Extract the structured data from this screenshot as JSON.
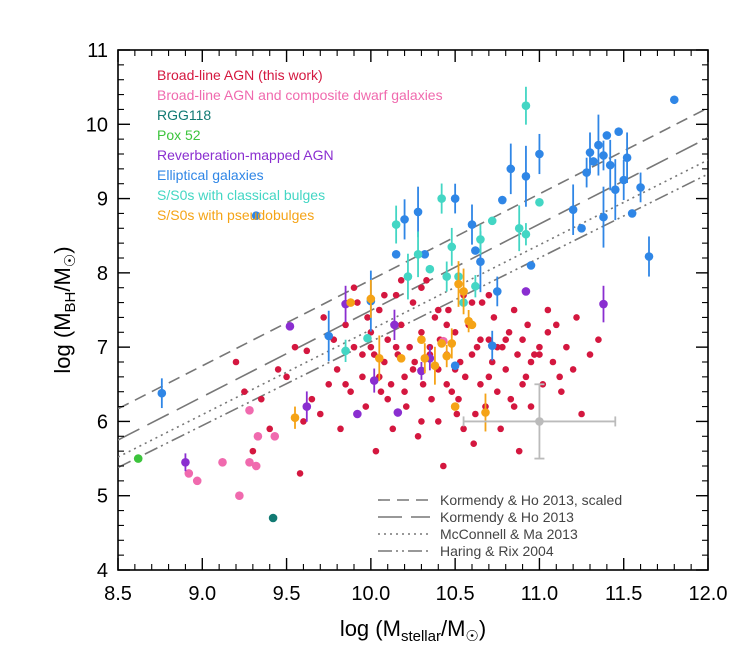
{
  "chart_data": {
    "type": "scatter",
    "xlabel": "log (M_stellar/M_sun)",
    "ylabel": "log (M_BH/M_sun)",
    "xlim": [
      8.5,
      12.0
    ],
    "ylim": [
      4.0,
      11.0
    ],
    "xticks": [
      "8.5",
      "9.0",
      "9.5",
      "10.0",
      "10.5",
      "11.0",
      "11.5",
      "12.0"
    ],
    "yticks": [
      "4",
      "5",
      "6",
      "7",
      "8",
      "9",
      "10",
      "11"
    ],
    "colors": {
      "broad_line": "#d4173f",
      "dwarf": "#f06aae",
      "rgg118": "#117a73",
      "pox52": "#3cc43c",
      "reverberation": "#8a2ed0",
      "elliptical": "#2f86e6",
      "classical": "#43d6c4",
      "pseudo": "#f5a316",
      "relation": "#777777",
      "error": "#bbbbbb"
    },
    "legend": [
      {
        "label": "Broad-line AGN (this work)",
        "series": "broad_line"
      },
      {
        "label": "Broad-line AGN and composite dwarf galaxies",
        "series": "dwarf"
      },
      {
        "label": "RGG118",
        "series": "rgg118"
      },
      {
        "label": "Pox 52",
        "series": "pox52"
      },
      {
        "label": "Reverberation-mapped AGN",
        "series": "reverberation"
      },
      {
        "label": "Elliptical galaxies",
        "series": "elliptical"
      },
      {
        "label": "S/S0s with classical bulges",
        "series": "classical"
      },
      {
        "label": "S/S0s with pseudobulges",
        "series": "pseudo"
      }
    ],
    "relations": [
      {
        "label": "Kormendy & Ho 2013, scaled",
        "dash": "12,7",
        "points": [
          [
            8.5,
            6.17
          ],
          [
            12.0,
            10.22
          ]
        ]
      },
      {
        "label": "Kormendy & Ho 2013",
        "dash": "24,9",
        "points": [
          [
            8.5,
            5.75
          ],
          [
            12.0,
            9.82
          ]
        ]
      },
      {
        "label": "McConnell & Ma 2013",
        "dash": "2,4",
        "points": [
          [
            8.5,
            5.52
          ],
          [
            12.0,
            9.52
          ]
        ]
      },
      {
        "label": "Haring & Rix 2004",
        "dash": "14,4,2,4,2,4",
        "points": [
          [
            8.5,
            5.38
          ],
          [
            12.0,
            9.33
          ]
        ]
      }
    ],
    "typical_error": {
      "x": 11.0,
      "y": 6.0,
      "xerr": 0.45,
      "yerr": 0.5
    },
    "series": [
      {
        "name": "broad_line",
        "values": [
          [
            9.62,
            6.95
          ],
          [
            9.65,
            6.3
          ],
          [
            9.7,
            6.1
          ],
          [
            9.72,
            7.4
          ],
          [
            9.75,
            6.5
          ],
          [
            9.78,
            7.1
          ],
          [
            9.8,
            6.7
          ],
          [
            9.82,
            5.9
          ],
          [
            9.85,
            7.3
          ],
          [
            9.88,
            6.4
          ],
          [
            9.9,
            7.0
          ],
          [
            9.92,
            7.6
          ],
          [
            9.95,
            6.6
          ],
          [
            9.97,
            6.2
          ],
          [
            10.0,
            7.2
          ],
          [
            10.02,
            6.9
          ],
          [
            10.03,
            5.6
          ],
          [
            10.05,
            7.5
          ],
          [
            10.06,
            6.4
          ],
          [
            10.08,
            6.8
          ],
          [
            10.1,
            7.1
          ],
          [
            10.12,
            6.5
          ],
          [
            10.13,
            5.9
          ],
          [
            10.15,
            7.7
          ],
          [
            10.16,
            6.9
          ],
          [
            10.18,
            7.3
          ],
          [
            10.2,
            6.6
          ],
          [
            10.21,
            6.2
          ],
          [
            10.23,
            7.0
          ],
          [
            10.25,
            7.6
          ],
          [
            10.26,
            6.8
          ],
          [
            10.28,
            5.8
          ],
          [
            10.3,
            7.2
          ],
          [
            10.31,
            6.5
          ],
          [
            10.33,
            7.9
          ],
          [
            10.35,
            6.9
          ],
          [
            10.36,
            6.3
          ],
          [
            10.38,
            7.4
          ],
          [
            10.4,
            6.7
          ],
          [
            10.41,
            7.1
          ],
          [
            10.43,
            5.4
          ],
          [
            10.45,
            6.9
          ],
          [
            10.46,
            7.5
          ],
          [
            10.48,
            6.4
          ],
          [
            10.5,
            7.2
          ],
          [
            10.51,
            6.1
          ],
          [
            10.53,
            6.8
          ],
          [
            10.55,
            7.7
          ],
          [
            10.56,
            6.6
          ],
          [
            10.58,
            7.3
          ],
          [
            10.6,
            6.9
          ],
          [
            10.61,
            5.7
          ],
          [
            10.63,
            7.0
          ],
          [
            10.65,
            6.5
          ],
          [
            10.66,
            7.6
          ],
          [
            10.68,
            6.2
          ],
          [
            10.7,
            7.1
          ],
          [
            10.72,
            6.8
          ],
          [
            10.73,
            7.4
          ],
          [
            10.75,
            6.4
          ],
          [
            10.77,
            5.9
          ],
          [
            10.78,
            7.0
          ],
          [
            10.8,
            6.7
          ],
          [
            10.82,
            7.2
          ],
          [
            10.83,
            6.3
          ],
          [
            10.85,
            7.5
          ],
          [
            10.87,
            6.9
          ],
          [
            10.88,
            5.6
          ],
          [
            10.9,
            7.1
          ],
          [
            10.92,
            6.6
          ],
          [
            10.93,
            7.3
          ],
          [
            10.95,
            6.2
          ],
          [
            10.97,
            6.9
          ],
          [
            11.0,
            7.0
          ],
          [
            11.02,
            6.5
          ],
          [
            11.05,
            7.2
          ],
          [
            11.08,
            6.8
          ],
          [
            11.1,
            7.3
          ],
          [
            11.13,
            6.4
          ],
          [
            11.16,
            7.0
          ],
          [
            11.2,
            6.7
          ],
          [
            11.25,
            6.1
          ],
          [
            11.3,
            6.9
          ],
          [
            11.35,
            7.1
          ],
          [
            9.5,
            6.6
          ],
          [
            9.55,
            7.0
          ],
          [
            9.58,
            5.3
          ],
          [
            9.6,
            6.0
          ],
          [
            9.45,
            6.7
          ],
          [
            9.4,
            5.9
          ],
          [
            9.35,
            6.3
          ],
          [
            9.3,
            5.6
          ],
          [
            9.25,
            6.4
          ],
          [
            9.2,
            6.8
          ],
          [
            10.0,
            7.0
          ],
          [
            10.3,
            7.8
          ],
          [
            10.45,
            7.3
          ],
          [
            10.6,
            7.6
          ],
          [
            10.7,
            6.6
          ],
          [
            10.8,
            7.1
          ],
          [
            10.2,
            6.4
          ],
          [
            10.4,
            6.0
          ],
          [
            10.55,
            5.9
          ],
          [
            10.9,
            6.5
          ],
          [
            11.0,
            6.9
          ],
          [
            10.15,
            7.0
          ],
          [
            10.35,
            7.0
          ],
          [
            10.5,
            6.7
          ],
          [
            10.65,
            7.1
          ],
          [
            10.25,
            6.7
          ],
          [
            10.05,
            6.6
          ],
          [
            9.95,
            6.9
          ],
          [
            9.85,
            6.5
          ],
          [
            10.1,
            6.3
          ],
          [
            10.45,
            6.5
          ],
          [
            10.75,
            7.0
          ],
          [
            10.95,
            6.8
          ],
          [
            11.12,
            6.6
          ],
          [
            10.3,
            6.0
          ],
          [
            10.52,
            6.3
          ],
          [
            10.62,
            6.1
          ],
          [
            10.85,
            6.2
          ],
          [
            10.7,
            7.7
          ],
          [
            10.4,
            7.5
          ],
          [
            10.18,
            7.9
          ],
          [
            10.08,
            7.7
          ],
          [
            9.98,
            7.4
          ],
          [
            9.9,
            7.8
          ],
          [
            11.05,
            7.5
          ],
          [
            11.22,
            7.4
          ]
        ]
      },
      {
        "name": "dwarf",
        "values": [
          [
            8.92,
            5.3
          ],
          [
            8.97,
            5.2
          ],
          [
            9.12,
            5.45
          ],
          [
            9.22,
            5.0
          ],
          [
            9.28,
            5.45
          ],
          [
            9.33,
            5.8
          ],
          [
            9.43,
            5.8
          ],
          [
            9.28,
            6.15
          ],
          [
            9.32,
            5.4
          ],
          [
            10.43,
            7.08
          ]
        ]
      },
      {
        "name": "rgg118",
        "values": [
          [
            9.42,
            4.7
          ]
        ]
      },
      {
        "name": "pox52",
        "values": [
          [
            8.62,
            5.5
          ]
        ]
      },
      {
        "name": "reverberation",
        "values": [
          [
            8.9,
            5.45
          ],
          [
            9.52,
            7.28
          ],
          [
            9.62,
            6.2
          ],
          [
            9.85,
            7.58
          ],
          [
            9.92,
            6.1
          ],
          [
            10.02,
            6.55
          ],
          [
            10.14,
            7.3
          ],
          [
            10.16,
            6.12
          ],
          [
            10.3,
            6.68
          ],
          [
            10.35,
            6.85
          ],
          [
            10.92,
            7.75
          ],
          [
            11.38,
            7.58
          ]
        ]
      },
      {
        "name": "elliptical",
        "values": [
          [
            8.76,
            6.38
          ],
          [
            9.32,
            8.77
          ],
          [
            9.75,
            7.15
          ],
          [
            10.0,
            7.62
          ],
          [
            10.15,
            8.25
          ],
          [
            10.2,
            8.72
          ],
          [
            10.28,
            8.82
          ],
          [
            10.32,
            8.25
          ],
          [
            10.5,
            9.0
          ],
          [
            10.6,
            8.65
          ],
          [
            10.62,
            8.3
          ],
          [
            10.65,
            8.15
          ],
          [
            10.75,
            7.75
          ],
          [
            10.78,
            8.98
          ],
          [
            10.83,
            9.4
          ],
          [
            10.92,
            9.3
          ],
          [
            10.95,
            8.1
          ],
          [
            11.0,
            9.6
          ],
          [
            11.2,
            8.85
          ],
          [
            11.25,
            8.6
          ],
          [
            11.28,
            9.35
          ],
          [
            11.3,
            9.62
          ],
          [
            11.32,
            9.5
          ],
          [
            11.35,
            9.72
          ],
          [
            11.38,
            9.58
          ],
          [
            11.4,
            9.85
          ],
          [
            11.42,
            9.45
          ],
          [
            11.45,
            9.12
          ],
          [
            11.47,
            9.9
          ],
          [
            11.5,
            9.25
          ],
          [
            11.52,
            9.55
          ],
          [
            11.55,
            8.8
          ],
          [
            11.6,
            9.15
          ],
          [
            11.65,
            8.22
          ],
          [
            11.8,
            10.33
          ],
          [
            11.38,
            8.75
          ],
          [
            10.72,
            7.02
          ],
          [
            10.5,
            6.75
          ]
        ]
      },
      {
        "name": "classical",
        "values": [
          [
            9.85,
            6.95
          ],
          [
            9.98,
            7.12
          ],
          [
            10.15,
            8.65
          ],
          [
            10.22,
            7.95
          ],
          [
            10.35,
            8.05
          ],
          [
            10.42,
            9.0
          ],
          [
            10.48,
            8.35
          ],
          [
            10.52,
            7.95
          ],
          [
            10.62,
            7.82
          ],
          [
            10.65,
            8.45
          ],
          [
            10.72,
            8.7
          ],
          [
            10.88,
            8.6
          ],
          [
            10.92,
            8.52
          ],
          [
            11.0,
            8.95
          ],
          [
            10.92,
            10.25
          ],
          [
            10.28,
            8.25
          ],
          [
            10.55,
            7.6
          ],
          [
            10.45,
            7.95
          ]
        ]
      },
      {
        "name": "pseudo",
        "values": [
          [
            9.55,
            6.05
          ],
          [
            9.88,
            7.6
          ],
          [
            10.0,
            7.65
          ],
          [
            10.05,
            6.85
          ],
          [
            10.18,
            6.85
          ],
          [
            10.32,
            6.85
          ],
          [
            10.38,
            6.75
          ],
          [
            10.42,
            7.05
          ],
          [
            10.45,
            6.88
          ],
          [
            10.48,
            7.05
          ],
          [
            10.5,
            6.2
          ],
          [
            10.52,
            7.85
          ],
          [
            10.58,
            7.35
          ],
          [
            10.6,
            7.3
          ],
          [
            10.68,
            6.12
          ],
          [
            10.55,
            7.75
          ],
          [
            10.3,
            7.1
          ]
        ]
      }
    ]
  }
}
